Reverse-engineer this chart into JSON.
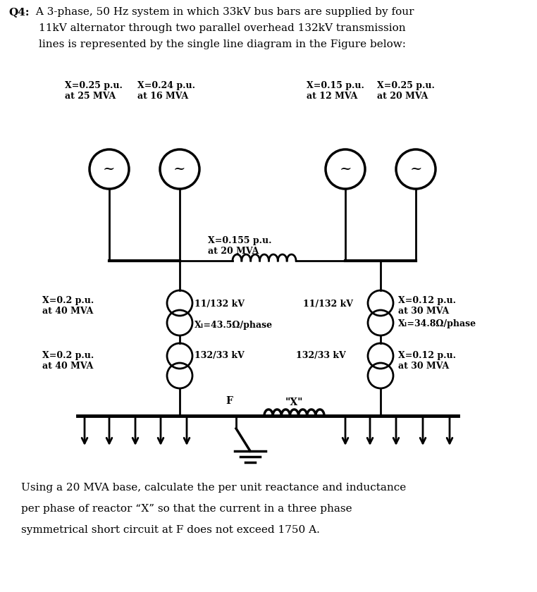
{
  "title_bold": "Q4:",
  "title_line1": " A 3-phase, 50 Hz system in which 33kV bus bars are supplied by four",
  "title_line2": "11kV alternator through two parallel overhead 132kV transmission",
  "title_line3": "lines is represented by the single line diagram in the Figure below:",
  "gen_labels": [
    "X=0.25 p.u.\nat 25 MVA",
    "X=0.24 p.u.\nat 16 MVA",
    "X=0.15 p.u.\nat 12 MVA",
    "X=0.25 p.u.\nat 20 MVA"
  ],
  "line_label": "X=0.155 p.u.\nat 20 MVA",
  "t1_upper_label": "X=0.2 p.u.\nat 40 MVA",
  "t1_upper_kv": "11/132 kV",
  "t1_xl": "Xₗ=43.5Ω/phase",
  "t1_lower_label": "X=0.2 p.u.\nat 40 MVA",
  "t1_lower_kv": "132/33 kV",
  "t2_upper_label": "X=0.12 p.u.\nat 30 MVA",
  "t2_upper_kv": "11/132 kV",
  "t2_xl": "Xₗ=34.8Ω/phase",
  "t2_lower_label": "X=0.12 p.u.\nat 30 MVA",
  "t2_lower_kv": "132/33 kV",
  "reactor_label": "\"X\"",
  "fault_label": "F",
  "bottom_line1": "Using a 20 MVA base, calculate the per unit reactance and inductance",
  "bottom_line2": "per phase of reactor “X” so that the current in a three phase",
  "bottom_line3": "symmetrical short circuit at F does not exceed 1750 A.",
  "bg_color": "#ffffff",
  "text_color": "#000000"
}
